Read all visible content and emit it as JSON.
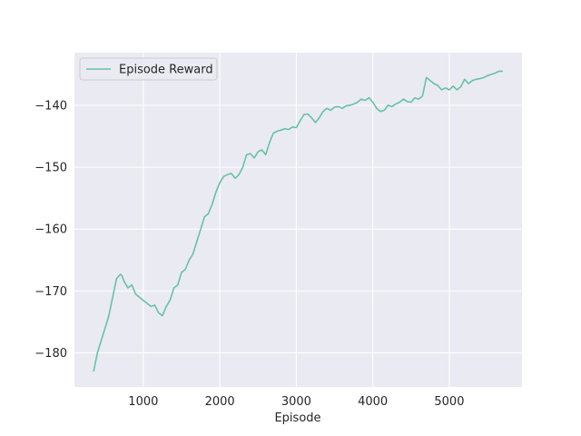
{
  "chart_data": {
    "type": "line",
    "xlabel": "Episode",
    "ylabel": "",
    "xlim": [
      100,
      5950
    ],
    "ylim": [
      -185.5,
      -131.5
    ],
    "xticks": [
      1000,
      2000,
      3000,
      4000,
      5000
    ],
    "yticks": [
      -180,
      -170,
      -160,
      -150,
      -140
    ],
    "grid": true,
    "legend_position": "top-left",
    "series": [
      {
        "name": "Episode Reward",
        "color": "#66c2a5",
        "x": [
          350,
          400,
          450,
          500,
          550,
          600,
          650,
          700,
          720,
          750,
          800,
          850,
          900,
          950,
          1000,
          1050,
          1100,
          1150,
          1200,
          1250,
          1300,
          1350,
          1400,
          1450,
          1500,
          1550,
          1600,
          1650,
          1700,
          1750,
          1800,
          1850,
          1900,
          1950,
          2000,
          2050,
          2100,
          2150,
          2200,
          2250,
          2300,
          2350,
          2400,
          2450,
          2500,
          2550,
          2600,
          2650,
          2700,
          2750,
          2800,
          2850,
          2900,
          2950,
          3000,
          3050,
          3100,
          3150,
          3200,
          3250,
          3300,
          3350,
          3400,
          3450,
          3500,
          3550,
          3600,
          3650,
          3700,
          3750,
          3800,
          3850,
          3900,
          3950,
          4000,
          4050,
          4100,
          4150,
          4200,
          4250,
          4300,
          4350,
          4400,
          4450,
          4500,
          4550,
          4600,
          4650,
          4700,
          4750,
          4800,
          4850,
          4900,
          4950,
          5000,
          5050,
          5100,
          5150,
          5200,
          5250,
          5300,
          5350,
          5400,
          5450,
          5500,
          5550,
          5600,
          5650,
          5700
        ],
        "y": [
          -183,
          -180,
          -178,
          -176,
          -174,
          -171,
          -168,
          -167.3,
          -167.5,
          -168.5,
          -169.5,
          -169,
          -170.5,
          -171,
          -171.5,
          -172,
          -172.5,
          -172.3,
          -173.5,
          -174,
          -172.5,
          -171.5,
          -169.5,
          -169,
          -167,
          -166.5,
          -165,
          -164,
          -162,
          -160,
          -158,
          -157.5,
          -156,
          -154,
          -152.5,
          -151.5,
          -151.2,
          -151,
          -151.8,
          -151.2,
          -150,
          -148,
          -147.8,
          -148.5,
          -147.5,
          -147.2,
          -148,
          -146,
          -144.5,
          -144.2,
          -144,
          -143.8,
          -143.9,
          -143.5,
          -143.6,
          -142.5,
          -141.5,
          -141.4,
          -142,
          -142.8,
          -142,
          -141,
          -140.5,
          -140.8,
          -140.3,
          -140.2,
          -140.5,
          -140.1,
          -140,
          -139.8,
          -139.5,
          -139,
          -139.2,
          -138.8,
          -139.5,
          -140.5,
          -141,
          -140.8,
          -140,
          -140.2,
          -139.8,
          -139.5,
          -139,
          -139.4,
          -139.5,
          -138.8,
          -139,
          -138.5,
          -135.5,
          -136,
          -136.5,
          -136.8,
          -137.5,
          -137.2,
          -137.5,
          -136.9,
          -137.5,
          -137,
          -135.8,
          -136.5,
          -136,
          -135.8,
          -135.7,
          -135.5,
          -135.2,
          -135,
          -134.8,
          -134.5,
          -134.5
        ]
      }
    ]
  }
}
